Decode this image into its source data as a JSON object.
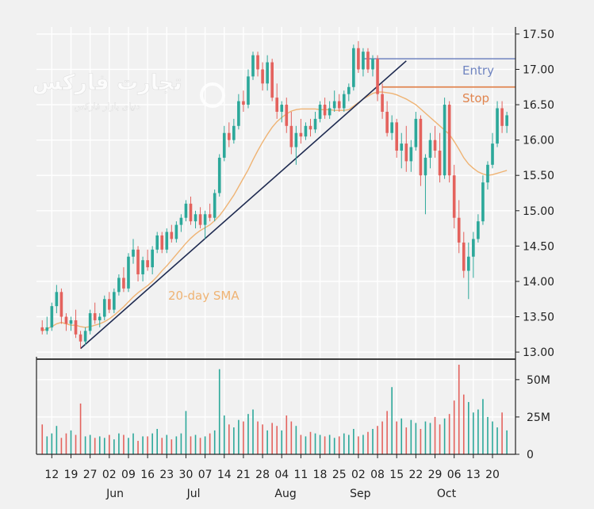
{
  "colors": {
    "background": "#f1f1f1",
    "grid": "#ffffff",
    "up_candle": "#2ca89a",
    "down_candle": "#e4625d",
    "sma": "#efb373",
    "trendline": "#1e2a50",
    "entry_line": "#6f84c0",
    "stop_line": "#e1854f",
    "axis": "#222222"
  },
  "watermark": {
    "brand": "تجارت فارکس",
    "tagline": "دنیای بازار فارکس"
  },
  "chart_data": [
    {
      "type": "candlestick",
      "title": "",
      "ylim": [
        12.9,
        17.6
      ],
      "y_ticks": [
        13.0,
        13.5,
        14.0,
        14.5,
        15.0,
        15.5,
        16.0,
        16.5,
        17.0,
        17.5
      ],
      "y_tick_labels": [
        "13.00",
        "13.50",
        "14.00",
        "14.50",
        "15.00",
        "15.50",
        "16.00",
        "16.50",
        "17.00",
        "17.50"
      ],
      "grid": true,
      "x_day_labels": [
        "12",
        "19",
        "27",
        "02",
        "09",
        "16",
        "23",
        "30",
        "07",
        "14",
        "21",
        "28",
        "04",
        "11",
        "18",
        "25",
        "02",
        "08",
        "15",
        "22",
        "29",
        "06",
        "13",
        "20"
      ],
      "x_month_labels": [
        {
          "label": "Jun",
          "at_day_index": 3.3
        },
        {
          "label": "Jul",
          "at_day_index": 7.4
        },
        {
          "label": "Aug",
          "at_day_index": 12.2
        },
        {
          "label": "Sep",
          "at_day_index": 16.1
        },
        {
          "label": "Oct",
          "at_day_index": 20.6
        }
      ],
      "series": [
        {
          "type": "candlestick",
          "ohlc": [
            [
              13.35,
              13.45,
              13.25,
              13.3
            ],
            [
              13.3,
              13.5,
              13.25,
              13.35
            ],
            [
              13.35,
              13.7,
              13.3,
              13.65
            ],
            [
              13.65,
              13.95,
              13.55,
              13.85
            ],
            [
              13.85,
              13.9,
              13.4,
              13.5
            ],
            [
              13.5,
              13.55,
              13.3,
              13.4
            ],
            [
              13.4,
              13.5,
              13.3,
              13.45
            ],
            [
              13.45,
              13.6,
              13.2,
              13.25
            ],
            [
              13.25,
              13.3,
              13.05,
              13.15
            ],
            [
              13.15,
              13.35,
              13.1,
              13.3
            ],
            [
              13.3,
              13.6,
              13.25,
              13.55
            ],
            [
              13.55,
              13.7,
              13.4,
              13.45
            ],
            [
              13.45,
              13.55,
              13.35,
              13.5
            ],
            [
              13.5,
              13.8,
              13.45,
              13.75
            ],
            [
              13.75,
              13.85,
              13.55,
              13.6
            ],
            [
              13.6,
              13.9,
              13.55,
              13.85
            ],
            [
              13.85,
              14.1,
              13.8,
              14.05
            ],
            [
              14.05,
              14.2,
              13.85,
              13.9
            ],
            [
              13.9,
              14.4,
              13.85,
              14.35
            ],
            [
              14.35,
              14.6,
              14.25,
              14.45
            ],
            [
              14.45,
              14.5,
              14.0,
              14.1
            ],
            [
              14.1,
              14.35,
              14.0,
              14.3
            ],
            [
              14.3,
              14.45,
              14.15,
              14.2
            ],
            [
              14.2,
              14.5,
              14.1,
              14.45
            ],
            [
              14.45,
              14.7,
              14.4,
              14.65
            ],
            [
              14.65,
              14.7,
              14.4,
              14.45
            ],
            [
              14.45,
              14.75,
              14.4,
              14.7
            ],
            [
              14.7,
              14.8,
              14.55,
              14.6
            ],
            [
              14.6,
              14.85,
              14.55,
              14.8
            ],
            [
              14.8,
              14.95,
              14.7,
              14.9
            ],
            [
              14.9,
              15.15,
              14.85,
              15.1
            ],
            [
              15.1,
              15.2,
              14.8,
              14.85
            ],
            [
              14.85,
              15.0,
              14.75,
              14.95
            ],
            [
              14.95,
              15.05,
              14.75,
              14.8
            ],
            [
              14.8,
              15.0,
              14.6,
              14.95
            ],
            [
              14.95,
              15.1,
              14.85,
              14.9
            ],
            [
              14.9,
              15.3,
              14.85,
              15.25
            ],
            [
              15.25,
              15.8,
              15.2,
              15.75
            ],
            [
              15.75,
              16.2,
              15.7,
              16.1
            ],
            [
              16.1,
              16.25,
              15.9,
              16.0
            ],
            [
              16.0,
              16.3,
              15.95,
              16.2
            ],
            [
              16.2,
              16.65,
              16.15,
              16.55
            ],
            [
              16.55,
              16.7,
              16.4,
              16.5
            ],
            [
              16.5,
              17.0,
              16.45,
              16.9
            ],
            [
              16.9,
              17.25,
              16.85,
              17.2
            ],
            [
              17.2,
              17.25,
              16.9,
              17.0
            ],
            [
              17.0,
              17.1,
              16.7,
              16.8
            ],
            [
              16.8,
              17.2,
              16.7,
              17.1
            ],
            [
              17.1,
              17.15,
              16.55,
              16.6
            ],
            [
              16.6,
              16.8,
              16.3,
              16.4
            ],
            [
              16.4,
              16.55,
              16.25,
              16.5
            ],
            [
              16.5,
              16.6,
              16.1,
              16.2
            ],
            [
              16.2,
              16.4,
              15.8,
              15.9
            ],
            [
              15.9,
              16.2,
              15.65,
              16.1
            ],
            [
              16.1,
              16.3,
              15.95,
              16.05
            ],
            [
              16.05,
              16.25,
              16.0,
              16.2
            ],
            [
              16.2,
              16.3,
              16.05,
              16.15
            ],
            [
              16.15,
              16.4,
              16.1,
              16.3
            ],
            [
              16.3,
              16.55,
              16.25,
              16.5
            ],
            [
              16.5,
              16.6,
              16.3,
              16.35
            ],
            [
              16.35,
              16.55,
              16.3,
              16.45
            ],
            [
              16.45,
              16.7,
              16.4,
              16.55
            ],
            [
              16.55,
              16.65,
              16.4,
              16.45
            ],
            [
              16.45,
              16.7,
              16.4,
              16.65
            ],
            [
              16.65,
              16.8,
              16.55,
              16.75
            ],
            [
              16.75,
              17.35,
              16.7,
              17.3
            ],
            [
              17.3,
              17.4,
              16.95,
              17.0
            ],
            [
              17.0,
              17.3,
              16.9,
              17.25
            ],
            [
              17.25,
              17.3,
              16.95,
              17.0
            ],
            [
              17.0,
              17.2,
              16.9,
              17.15
            ],
            [
              17.15,
              17.2,
              16.55,
              16.65
            ],
            [
              16.65,
              16.8,
              16.3,
              16.4
            ],
            [
              16.4,
              16.55,
              16.05,
              16.1
            ],
            [
              16.1,
              16.35,
              16.0,
              16.25
            ],
            [
              16.25,
              16.3,
              15.75,
              15.85
            ],
            [
              15.85,
              16.1,
              15.6,
              15.95
            ],
            [
              15.95,
              16.2,
              15.55,
              15.7
            ],
            [
              15.7,
              16.0,
              15.55,
              15.9
            ],
            [
              15.9,
              16.4,
              15.85,
              16.3
            ],
            [
              16.3,
              16.35,
              15.35,
              15.5
            ],
            [
              15.5,
              15.8,
              14.95,
              15.75
            ],
            [
              15.75,
              16.1,
              15.6,
              16.0
            ],
            [
              16.0,
              16.2,
              15.75,
              15.85
            ],
            [
              15.85,
              16.1,
              15.4,
              15.5
            ],
            [
              15.5,
              16.6,
              15.45,
              16.5
            ],
            [
              16.5,
              16.55,
              15.4,
              15.5
            ],
            [
              15.5,
              15.65,
              14.75,
              14.9
            ],
            [
              14.9,
              15.15,
              14.4,
              14.55
            ],
            [
              14.55,
              14.7,
              14.05,
              14.15
            ],
            [
              14.15,
              14.55,
              13.75,
              14.35
            ],
            [
              14.35,
              14.7,
              14.05,
              14.6
            ],
            [
              14.6,
              14.95,
              14.55,
              14.85
            ],
            [
              14.85,
              15.5,
              14.8,
              15.4
            ],
            [
              15.4,
              15.7,
              15.3,
              15.65
            ],
            [
              15.65,
              16.1,
              15.6,
              15.95
            ],
            [
              15.95,
              16.55,
              15.9,
              16.45
            ],
            [
              16.45,
              16.55,
              16.1,
              16.2
            ],
            [
              16.2,
              16.4,
              16.1,
              16.35
            ]
          ]
        },
        {
          "type": "line",
          "name": "20-day SMA",
          "values": [
            13.3,
            13.33,
            13.36,
            13.4,
            13.42,
            13.4,
            13.38,
            13.38,
            13.36,
            13.35,
            13.36,
            13.38,
            13.4,
            13.43,
            13.47,
            13.52,
            13.58,
            13.64,
            13.71,
            13.78,
            13.84,
            13.89,
            13.94,
            14.0,
            14.07,
            14.15,
            14.22,
            14.3,
            14.38,
            14.46,
            14.54,
            14.61,
            14.67,
            14.72,
            14.76,
            14.8,
            14.86,
            14.93,
            15.02,
            15.12,
            15.22,
            15.34,
            15.46,
            15.58,
            15.72,
            15.85,
            15.97,
            16.08,
            16.18,
            16.26,
            16.32,
            16.37,
            16.41,
            16.43,
            16.44,
            16.44,
            16.44,
            16.44,
            16.43,
            16.43,
            16.43,
            16.42,
            16.42,
            16.42,
            16.43,
            16.48,
            16.53,
            16.58,
            16.62,
            16.66,
            16.68,
            16.68,
            16.67,
            16.66,
            16.64,
            16.61,
            16.58,
            16.54,
            16.5,
            16.44,
            16.38,
            16.32,
            16.26,
            16.2,
            16.14,
            16.08,
            15.98,
            15.87,
            15.75,
            15.66,
            15.6,
            15.55,
            15.52,
            15.5,
            15.51,
            15.53,
            15.55,
            15.57
          ]
        },
        {
          "type": "line",
          "name": "Entry",
          "y": 17.15,
          "from_index": 67
        },
        {
          "type": "line",
          "name": "Stop",
          "y": 16.75,
          "from_index": 71
        },
        {
          "type": "line",
          "name": "trendline",
          "points": [
            [
              8,
              13.05
            ],
            [
              76,
              17.12
            ]
          ]
        }
      ],
      "annotations": [
        {
          "text": "Entry",
          "series": "Entry"
        },
        {
          "text": "Stop",
          "series": "Stop"
        },
        {
          "text": "20-day SMA",
          "series": "20-day SMA"
        }
      ]
    },
    {
      "type": "bar",
      "title": "",
      "ylabel": "",
      "ylim": [
        0,
        60
      ],
      "y_ticks": [
        0,
        25,
        50
      ],
      "y_tick_labels": [
        "0",
        "25M",
        "50M"
      ],
      "grid": true,
      "values": [
        20,
        12,
        14,
        19,
        11,
        14,
        16,
        13,
        34,
        12,
        13,
        11,
        12,
        11,
        13,
        10,
        14,
        13,
        11,
        14,
        9,
        12,
        12,
        14,
        17,
        11,
        13,
        10,
        12,
        14,
        29,
        12,
        13,
        11,
        12,
        14,
        16,
        57,
        26,
        20,
        18,
        23,
        22,
        27,
        30,
        22,
        20,
        16,
        21,
        19,
        16,
        26,
        22,
        19,
        13,
        12,
        15,
        14,
        13,
        12,
        13,
        11,
        12,
        14,
        13,
        17,
        12,
        13,
        15,
        17,
        19,
        22,
        29,
        45,
        22,
        24,
        18,
        23,
        21,
        17,
        22,
        21,
        25,
        20,
        24,
        27,
        36,
        60,
        40,
        35,
        28,
        30,
        37,
        25,
        22,
        18,
        28,
        16
      ]
    }
  ]
}
